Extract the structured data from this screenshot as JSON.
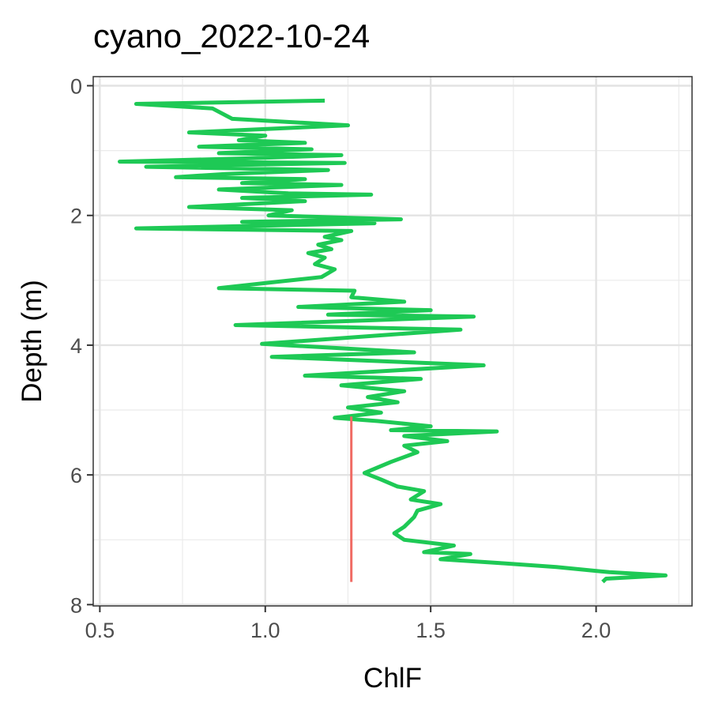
{
  "chart_data": {
    "type": "line",
    "title": "cyano_2022-10-24",
    "xlabel": "ChlF",
    "ylabel": "Depth (m)",
    "xlim": [
      0.48,
      2.29
    ],
    "ylim": [
      0,
      8
    ],
    "y_reversed": true,
    "x_ticks": [
      0.5,
      1.0,
      1.5,
      2.0
    ],
    "x_tick_labels": [
      "0.5",
      "1.0",
      "1.5",
      "2.0"
    ],
    "y_ticks": [
      0,
      2,
      4,
      6,
      8
    ],
    "y_tick_labels": [
      "0",
      "2",
      "4",
      "6",
      "8"
    ],
    "grid": true,
    "legend": "none",
    "series": [
      {
        "color": "#1ec955",
        "points": [
          [
            1.18,
            0.23
          ],
          [
            0.61,
            0.28
          ],
          [
            0.84,
            0.35
          ],
          [
            0.9,
            0.51
          ],
          [
            1.25,
            0.61
          ],
          [
            0.77,
            0.72
          ],
          [
            1.0,
            0.77
          ],
          [
            0.92,
            0.84
          ],
          [
            1.12,
            0.88
          ],
          [
            0.8,
            0.94
          ],
          [
            1.14,
            0.98
          ],
          [
            0.86,
            1.04
          ],
          [
            1.23,
            1.07
          ],
          [
            0.94,
            1.12
          ],
          [
            0.56,
            1.17
          ],
          [
            1.24,
            1.19
          ],
          [
            0.64,
            1.25
          ],
          [
            1.19,
            1.3
          ],
          [
            0.88,
            1.36
          ],
          [
            0.73,
            1.41
          ],
          [
            1.12,
            1.44
          ],
          [
            0.93,
            1.5
          ],
          [
            1.23,
            1.53
          ],
          [
            0.86,
            1.6
          ],
          [
            1.07,
            1.66
          ],
          [
            1.32,
            1.68
          ],
          [
            0.93,
            1.73
          ],
          [
            1.12,
            1.78
          ],
          [
            0.77,
            1.87
          ],
          [
            1.08,
            1.92
          ],
          [
            1.01,
            2.0
          ],
          [
            1.41,
            2.06
          ],
          [
            0.93,
            2.1
          ],
          [
            1.33,
            2.12
          ],
          [
            0.61,
            2.2
          ],
          [
            1.26,
            2.24
          ],
          [
            1.18,
            2.33
          ],
          [
            1.23,
            2.38
          ],
          [
            1.16,
            2.45
          ],
          [
            1.2,
            2.52
          ],
          [
            1.13,
            2.58
          ],
          [
            1.18,
            2.65
          ],
          [
            1.15,
            2.75
          ],
          [
            1.21,
            2.83
          ],
          [
            1.17,
            2.95
          ],
          [
            1.04,
            3.02
          ],
          [
            0.86,
            3.12
          ],
          [
            1.27,
            3.16
          ],
          [
            1.26,
            3.26
          ],
          [
            1.42,
            3.33
          ],
          [
            1.1,
            3.41
          ],
          [
            1.5,
            3.46
          ],
          [
            1.19,
            3.53
          ],
          [
            1.63,
            3.56
          ],
          [
            0.91,
            3.69
          ],
          [
            1.59,
            3.76
          ],
          [
            0.99,
            3.98
          ],
          [
            1.45,
            4.11
          ],
          [
            1.02,
            4.18
          ],
          [
            1.66,
            4.31
          ],
          [
            1.12,
            4.47
          ],
          [
            1.47,
            4.52
          ],
          [
            1.23,
            4.62
          ],
          [
            1.42,
            4.71
          ],
          [
            1.31,
            4.8
          ],
          [
            1.4,
            4.88
          ],
          [
            1.25,
            4.96
          ],
          [
            1.35,
            5.04
          ],
          [
            1.21,
            5.12
          ],
          [
            1.34,
            5.17
          ],
          [
            1.5,
            5.25
          ],
          [
            1.38,
            5.31
          ],
          [
            1.7,
            5.33
          ],
          [
            1.42,
            5.4
          ],
          [
            1.55,
            5.48
          ],
          [
            1.42,
            5.55
          ],
          [
            1.46,
            5.65
          ],
          [
            1.38,
            5.8
          ],
          [
            1.3,
            5.97
          ],
          [
            1.35,
            6.07
          ],
          [
            1.4,
            6.18
          ],
          [
            1.48,
            6.25
          ],
          [
            1.44,
            6.38
          ],
          [
            1.53,
            6.45
          ],
          [
            1.46,
            6.55
          ],
          [
            1.45,
            6.65
          ],
          [
            1.42,
            6.8
          ],
          [
            1.39,
            6.9
          ],
          [
            1.42,
            7.0
          ],
          [
            1.57,
            7.09
          ],
          [
            1.48,
            7.19
          ],
          [
            1.62,
            7.22
          ],
          [
            1.53,
            7.3
          ],
          [
            1.71,
            7.36
          ],
          [
            1.88,
            7.42
          ],
          [
            2.04,
            7.5
          ],
          [
            2.21,
            7.55
          ],
          [
            2.03,
            7.6
          ],
          [
            2.02,
            7.65
          ]
        ]
      },
      {
        "color": "#f06a63",
        "points": [
          [
            1.26,
            5.1
          ],
          [
            1.26,
            7.65
          ]
        ]
      }
    ]
  }
}
